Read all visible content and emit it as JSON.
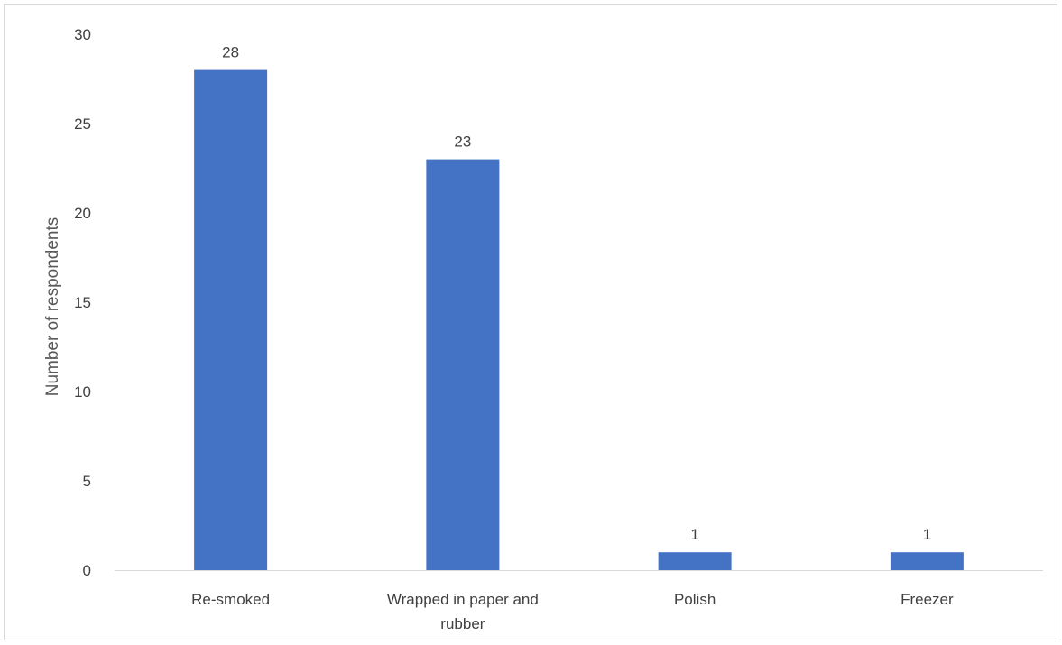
{
  "chart_data": {
    "type": "bar",
    "title": "",
    "xlabel": "",
    "ylabel": "Number of respondents",
    "categories": [
      "Re-smoked",
      "Wrapped in paper and rubber",
      "Polish",
      "Freezer"
    ],
    "category_lines": [
      [
        "Re-smoked"
      ],
      [
        "Wrapped in paper and",
        "rubber"
      ],
      [
        "Polish"
      ],
      [
        "Freezer"
      ]
    ],
    "values": [
      28,
      23,
      1,
      1
    ],
    "data_labels": [
      "28",
      "23",
      "1",
      "1"
    ],
    "ylim": [
      0,
      30
    ],
    "yticks": [
      0,
      5,
      10,
      15,
      20,
      25,
      30
    ],
    "grid": false,
    "legend": "none",
    "bar_color": "#4472C4",
    "axis_color": "#d9d9d9",
    "text_color": "#404040"
  }
}
